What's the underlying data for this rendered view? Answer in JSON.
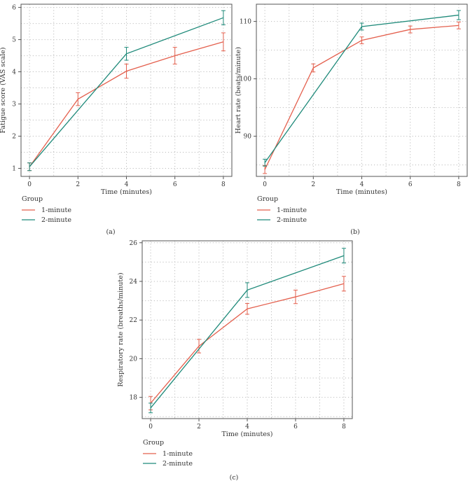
{
  "colors": {
    "one_minute": "#e4604e",
    "two_minute": "#1f8a7a",
    "frame": "#555555",
    "grid": "#bdbdbd"
  },
  "chart_data": [
    {
      "type": "line",
      "panel_label": "(a)",
      "title": "",
      "xlabel": "Time (minutes)",
      "ylabel": "Fatigue score (VAS scale)",
      "xlim": [
        -0.35,
        8.35
      ],
      "ylim": [
        0.75,
        6.1
      ],
      "xticks": [
        0,
        2,
        4,
        6,
        8
      ],
      "yticks": [
        1,
        2,
        3,
        4,
        5,
        6
      ],
      "legend": {
        "title": "Group",
        "position": "bottom-left"
      },
      "series": [
        {
          "name": "1-minute",
          "color": "#e4604e",
          "x": [
            0,
            2,
            4,
            6,
            8
          ],
          "y": [
            1.05,
            3.15,
            4.02,
            4.5,
            4.93
          ],
          "err": [
            0.12,
            0.2,
            0.22,
            0.26,
            0.28
          ]
        },
        {
          "name": "2-minute",
          "color": "#1f8a7a",
          "x": [
            0,
            4,
            8
          ],
          "y": [
            1.05,
            4.56,
            5.68
          ],
          "err": [
            0.12,
            0.2,
            0.22
          ]
        }
      ]
    },
    {
      "type": "line",
      "panel_label": "(b)",
      "title": "",
      "xlabel": "Time (minutes)",
      "ylabel": "Heart rate (beats/minute)",
      "xlim": [
        -0.35,
        8.35
      ],
      "ylim": [
        83,
        113
      ],
      "xticks": [
        0,
        2,
        4,
        6,
        8
      ],
      "yticks": [
        90,
        100,
        110
      ],
      "legend": {
        "title": "Group",
        "position": "bottom-left"
      },
      "series": [
        {
          "name": "1-minute",
          "color": "#e4604e",
          "x": [
            0,
            2,
            4,
            6,
            8
          ],
          "y": [
            84.2,
            101.9,
            106.7,
            108.6,
            109.3
          ],
          "err": [
            0.7,
            0.7,
            0.6,
            0.6,
            0.6
          ]
        },
        {
          "name": "2-minute",
          "color": "#1f8a7a",
          "x": [
            0,
            4,
            8
          ],
          "y": [
            85.4,
            109.1,
            111.1
          ],
          "err": [
            0.6,
            0.6,
            0.8
          ]
        }
      ]
    },
    {
      "type": "line",
      "panel_label": "(c)",
      "title": "",
      "xlabel": "Time (minutes)",
      "ylabel": "Respiratory rate (breaths/minute)",
      "xlim": [
        -0.35,
        8.35
      ],
      "ylim": [
        16.9,
        26.1
      ],
      "xticks": [
        0,
        2,
        4,
        6,
        8
      ],
      "yticks": [
        18,
        20,
        22,
        24,
        26
      ],
      "legend": {
        "title": "Group",
        "position": "bottom-left"
      },
      "series": [
        {
          "name": "1-minute",
          "color": "#e4604e",
          "x": [
            0,
            2,
            4,
            6,
            8
          ],
          "y": [
            17.7,
            20.65,
            22.58,
            23.2,
            23.88
          ],
          "err": [
            0.35,
            0.35,
            0.28,
            0.35,
            0.38
          ]
        },
        {
          "name": "2-minute",
          "color": "#1f8a7a",
          "x": [
            0,
            4,
            8
          ],
          "y": [
            17.45,
            23.55,
            25.33
          ],
          "err": [
            0.25,
            0.38,
            0.38
          ]
        }
      ]
    }
  ]
}
